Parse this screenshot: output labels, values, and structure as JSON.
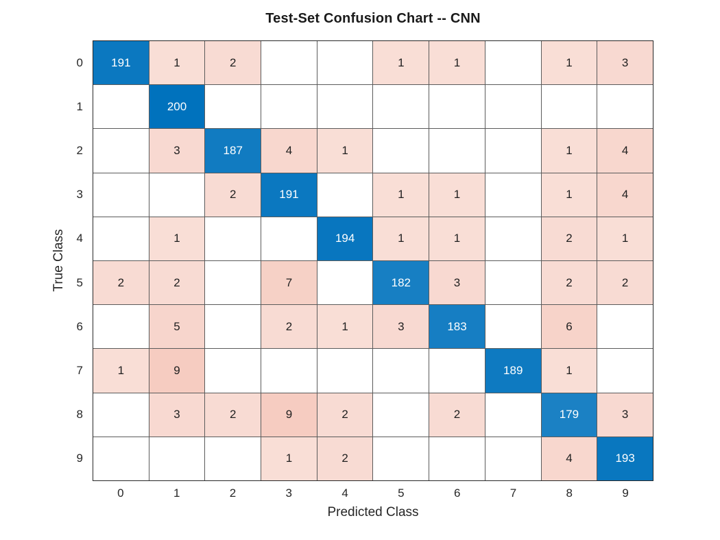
{
  "chart_data": {
    "type": "heatmap",
    "subtype": "confusion-matrix",
    "title": "Test-Set Confusion Chart -- CNN",
    "xlabel": "Predicted Class",
    "ylabel": "True Class",
    "x_tick_labels": [
      "0",
      "1",
      "2",
      "3",
      "4",
      "5",
      "6",
      "7",
      "8",
      "9"
    ],
    "y_tick_labels": [
      "0",
      "1",
      "2",
      "3",
      "4",
      "5",
      "6",
      "7",
      "8",
      "9"
    ],
    "matrix": [
      [
        191,
        1,
        2,
        null,
        null,
        1,
        1,
        null,
        1,
        3
      ],
      [
        null,
        200,
        null,
        null,
        null,
        null,
        null,
        null,
        null,
        null
      ],
      [
        null,
        3,
        187,
        4,
        1,
        null,
        null,
        null,
        1,
        4
      ],
      [
        null,
        null,
        2,
        191,
        null,
        1,
        1,
        null,
        1,
        4
      ],
      [
        null,
        1,
        null,
        null,
        194,
        1,
        1,
        null,
        2,
        1
      ],
      [
        2,
        2,
        null,
        7,
        null,
        182,
        3,
        null,
        2,
        2
      ],
      [
        null,
        5,
        null,
        2,
        1,
        3,
        183,
        null,
        6,
        null
      ],
      [
        1,
        9,
        null,
        null,
        null,
        null,
        null,
        189,
        1,
        null
      ],
      [
        null,
        3,
        2,
        9,
        2,
        null,
        2,
        null,
        179,
        3
      ],
      [
        null,
        null,
        null,
        1,
        2,
        null,
        null,
        null,
        4,
        193
      ]
    ],
    "legend": "none",
    "grid": "on",
    "colors": {
      "diagonal": "#0072BD",
      "off_diagonal": "#E88266",
      "empty_cell": "#FFFFFF",
      "diagonal_text": "#FFFFFF",
      "off_diagonal_text": "#1F1F1F",
      "grid_line": "#5A5A5A",
      "outer_border": "#262626",
      "tick_text": "#262626",
      "title_text": "#1A1A1A"
    }
  }
}
